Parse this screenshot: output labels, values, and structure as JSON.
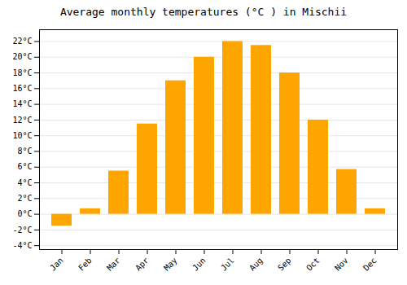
{
  "chart_data": {
    "type": "bar",
    "title": "Average monthly temperatures (°C ) in Mischii",
    "categories": [
      "Jan",
      "Feb",
      "Mar",
      "Apr",
      "May",
      "Jun",
      "Jul",
      "Aug",
      "Sep",
      "Oct",
      "Nov",
      "Dec"
    ],
    "values": [
      -1.5,
      0.7,
      5.5,
      11.5,
      17.0,
      20.0,
      22.0,
      21.5,
      18.0,
      12.0,
      5.7,
      0.7
    ],
    "color": "#FFA500",
    "ylim": [
      -4.5,
      23.5
    ],
    "yticks": [
      {
        "value": -4,
        "label": "-4°C"
      },
      {
        "value": -2,
        "label": "-2°C"
      },
      {
        "value": 0,
        "label": "0°C"
      },
      {
        "value": 2,
        "label": "2°C"
      },
      {
        "value": 4,
        "label": "4°C"
      },
      {
        "value": 6,
        "label": "6°C"
      },
      {
        "value": 8,
        "label": "8°C"
      },
      {
        "value": 10,
        "label": "10°C"
      },
      {
        "value": 12,
        "label": "12°C"
      },
      {
        "value": 14,
        "label": "14°C"
      },
      {
        "value": 16,
        "label": "16°C"
      },
      {
        "value": 18,
        "label": "18°C"
      },
      {
        "value": 20,
        "label": "20°C"
      },
      {
        "value": 22,
        "label": "22°C"
      }
    ],
    "grid": true
  }
}
